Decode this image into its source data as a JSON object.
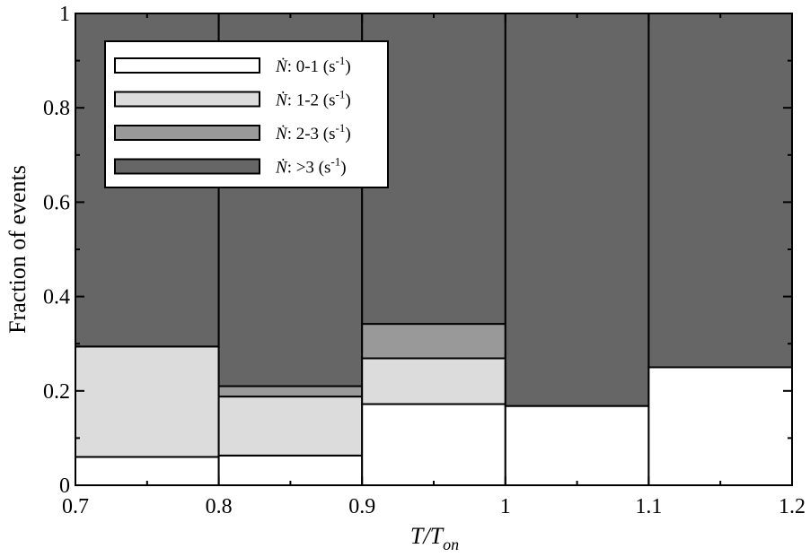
{
  "chart_data": {
    "type": "bar",
    "stacked": true,
    "x_edges": [
      0.7,
      0.8,
      0.9,
      1.0,
      1.1,
      1.2
    ],
    "series": [
      {
        "name": "0-1",
        "color": "#ffffff",
        "values": [
          0.06,
          0.063,
          0.172,
          0.168,
          0.25
        ]
      },
      {
        "name": "1-2",
        "color": "#dcdcdc",
        "values": [
          0.234,
          0.125,
          0.097,
          0.0,
          0.0
        ]
      },
      {
        "name": "2-3",
        "color": "#999999",
        "values": [
          0.0,
          0.022,
          0.073,
          0.0,
          0.0
        ]
      },
      {
        "name": ">3",
        "color": "#666666",
        "values": [
          0.706,
          0.79,
          0.658,
          0.832,
          0.75
        ]
      }
    ],
    "xlim": [
      0.7,
      1.2
    ],
    "ylim": [
      0,
      1
    ],
    "x_ticks": [
      "0.7",
      "0.8",
      "0.9",
      "1",
      "1.1",
      "1.2"
    ],
    "y_ticks": [
      "0",
      "0.2",
      "0.4",
      "0.6",
      "0.8",
      "1"
    ],
    "xlabel": {
      "main": "T/T",
      "sub": "on"
    },
    "ylabel": "Fraction of events",
    "legend": {
      "placement": "top-left",
      "prefix": "Ṅ",
      "items": [
        {
          "range": ": 0-1",
          "unit": "(s",
          "exp": "-1",
          "close": ")"
        },
        {
          "range": ": 1-2",
          "unit": "(s",
          "exp": "-1",
          "close": ")"
        },
        {
          "range": ": 2-3",
          "unit": "(s",
          "exp": "-1",
          "close": ")"
        },
        {
          "range": ": >3 ",
          "unit": "(s",
          "exp": "-1",
          "close": ")"
        }
      ]
    }
  }
}
